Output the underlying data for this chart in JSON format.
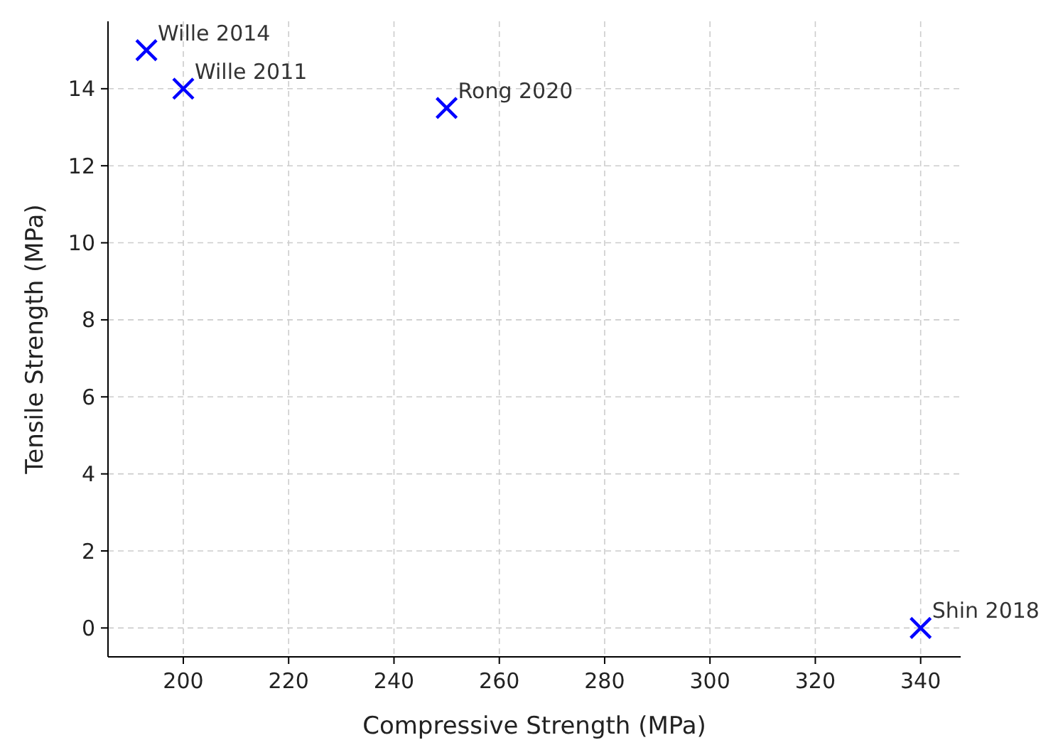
{
  "chart_data": {
    "type": "scatter",
    "xlabel": "Compressive Strength (MPa)",
    "ylabel": "Tensile Strength (MPa)",
    "x": [
      193,
      200,
      250,
      340
    ],
    "series": [
      {
        "color": "#0000ff",
        "values": [
          15,
          14,
          13.5,
          0
        ]
      }
    ],
    "annotations": [
      {
        "text": "Wille 2014",
        "x": 193,
        "y": 15
      },
      {
        "text": "Wille 2011",
        "x": 200,
        "y": 14
      },
      {
        "text": "Rong 2020",
        "x": 250,
        "y": 13.5
      },
      {
        "text": "Shin 2018",
        "x": 340,
        "y": 0
      }
    ],
    "xlim": [
      185.7,
      347.6
    ],
    "ylim": [
      -0.75,
      15.75
    ],
    "xticks": [
      200,
      220,
      240,
      260,
      280,
      300,
      320,
      340
    ],
    "yticks": [
      0,
      2,
      4,
      6,
      8,
      10,
      12,
      14
    ],
    "grid": true,
    "marker": "cross"
  }
}
